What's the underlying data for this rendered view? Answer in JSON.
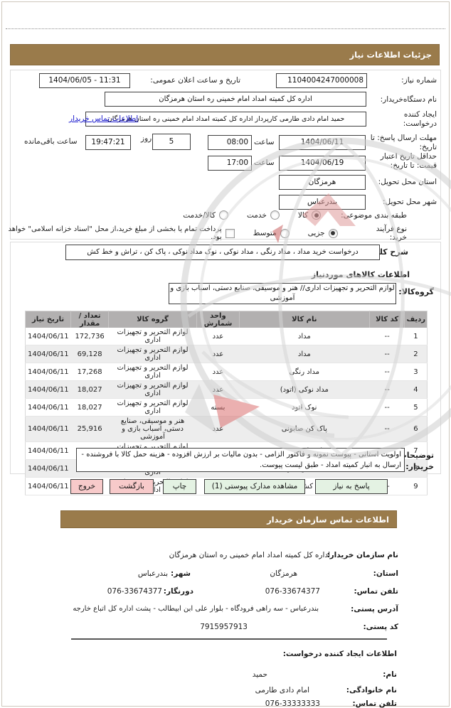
{
  "page": {
    "header_title": "جزئیات اطلاعات نیاز",
    "colors": {
      "header_bar": "#9a7b4b",
      "table_header": "#b2b0b0",
      "button_green": "#e4f2e3",
      "button_pink": "#f7caca",
      "link_blue": "#1414cc"
    }
  },
  "request": {
    "need_number_label": "شماره نیاز:",
    "need_number": "1104004247000008",
    "announce_label": "تاریخ و ساعت اعلان عمومی:",
    "announce_value": "1404/06/05 - 11:31",
    "buyer_org_label": "نام دستگاه‌خریدار:",
    "buyer_org": "اداره کل  کمیته امداد امام خمینی ره استان هرمزگان",
    "creator_label": "ایجاد کننده\nدرخواست:",
    "creator_value": "حمید امام دادی طارمی  کارپرداز اداره کل  کمیته امداد امام خمینی ره استان هرمزگان",
    "contact_link": "اطلاعات تماس خریدار",
    "deadline_label": "مهلت ارسال پاسخ: تا\nتاریخ:",
    "deadline_date": "1404/06/11",
    "hour_label": "ساعت",
    "deadline_time": "08:00",
    "days_value": "5",
    "days_label": "روز",
    "remaining_value": "19:47:21",
    "remaining_label": "ساعت باقی‌مانده",
    "validity_label": "حداقل تاریخ اعتبار\nقیمت: تا تاریخ:",
    "validity_date": "1404/06/19",
    "validity_time": "17:00",
    "province_label": "استان محل تحویل:",
    "province": "هرمزگان",
    "city_label": "شهر محل تحویل:",
    "city": "بندرعباس",
    "category_label": "طبقه بندی موضوعی:",
    "category_options": [
      "کالا",
      "خدمت",
      "کالا/خدمت"
    ],
    "category_selected": "کالا",
    "process_label": "نوع فرآیند خرید:",
    "process_options": [
      "جزیی",
      "متوسط"
    ],
    "process_selected": "جزیی",
    "treasury_checkbox_label": "پرداخت تمام یا بخشی از مبلغ خرید،از محل \"اسناد خزانه اسلامی\" خواهد بود."
  },
  "need": {
    "desc_label": "شرح کلی‌نیاز:",
    "desc": "درخواست خرید مداد ، مداد رنگی ، مداد نوکی ، نوک مداد نوکی ، پاک کن ، تراش و خط کش",
    "goods_info_title": "اطلاعات کالاهای موردنیاز",
    "group_label": "گروه‌کالا:",
    "group_value": "لوازم التحریر و تجهیزات اداری// هنر و موسیقی،  صنایع دستی، اسباب بازی و آموزشی"
  },
  "table": {
    "headers": [
      "ردیف",
      "کد کالا",
      "نام کالا",
      "واحد شمارش",
      "گروه کالا",
      "تعداد / مقدار",
      "تاریخ نیاز"
    ],
    "rows": [
      [
        "1",
        "--",
        "مداد",
        "عدد",
        "لوازم التحریر و تجهیزات اداری",
        "172,736",
        "1404/06/11"
      ],
      [
        "2",
        "--",
        "مداد",
        "عدد",
        "لوازم التحریر و تجهیزات اداری",
        "69,128",
        "1404/06/11"
      ],
      [
        "3",
        "--",
        "مداد رنگی",
        "عدد",
        "لوازم التحریر و تجهیزات اداری",
        "17,268",
        "1404/06/11"
      ],
      [
        "4",
        "--",
        "مداد نوکی (اتود)",
        "عدد",
        "لوازم التحریر و تجهیزات اداری",
        "18,027",
        "1404/06/11"
      ],
      [
        "5",
        "--",
        "نوک اتود",
        "بسته",
        "لوازم التحریر و تجهیزات اداری",
        "18,027",
        "1404/06/11"
      ],
      [
        "6",
        "--",
        "پاک کن  صابونی",
        "عدد",
        "هنر و موسیقی،  صنایع دستی، اسباب بازی و آموزشی",
        "25,916",
        "1404/06/11"
      ],
      [
        "7",
        "--",
        "مداد تراش دستی",
        "عدد",
        "لوازم التحریر و تجهیزات اداری",
        "25,916",
        "1404/06/11"
      ],
      [
        "8",
        "--",
        "خط کش اداری",
        "عدد",
        "لوازم التحریر و تجهیزات اداری",
        "17,268",
        "1404/06/11"
      ],
      [
        "9",
        "--",
        "خط کش اداری",
        "عدد",
        "لوازم التحریر و تجهیزات اداری",
        "18,027",
        "1404/06/11"
      ]
    ]
  },
  "remarks": {
    "label": "توضیحات\nخریدار:",
    "text": "اولویت استانی - پیوست نمونه و فاکتور الزامی - بدون مالیات بر ارزش افزوده - هزینه حمل کالا با فروشنده - ارسال به انبار کمیته امداد - طبق لیست پیوست."
  },
  "buttons": {
    "respond": "پاسخ به نیاز",
    "view_docs": "مشاهده مدارک پیوستی (1)",
    "print": "چاپ",
    "back": "بازگشت",
    "exit": "خروج"
  },
  "contact": {
    "title": "اطلاعات تماس سازمان خریدار",
    "org_label": "نام سازمان خریدار:",
    "org": "اداره کل کمیته امداد امام خمینی  ره استان هرمزگان",
    "province_label": "استان:",
    "province": "هرمزگان",
    "city_label": "شهر:",
    "city": "بندرعباس",
    "phone_label": "تلفن تماس:",
    "phone": "076-33674377",
    "fax_label": "دورنگار:",
    "fax": "076-33674377",
    "address_label": "آدرس پستی:",
    "address": "بندرعباس - سه راهی فرودگاه - بلوار علی ابن ابیطالب - پشت اداره کل اتباع خارجه",
    "postal_label": "کد پستی:",
    "postal_code": "7915957913"
  },
  "creator": {
    "title": "اطلاعات ایجاد کننده درخواست:",
    "first_name_label": "نام:",
    "first_name": "حمید",
    "last_name_label": "نام خانوادگی:",
    "last_name": "امام دادی طارمی",
    "phone_label": "تلفن تماس:",
    "phone": "076-33333333"
  }
}
